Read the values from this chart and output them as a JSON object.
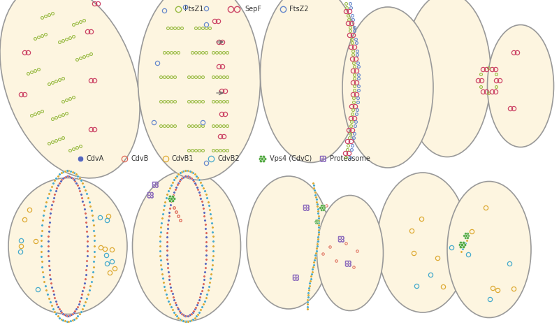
{
  "bg_color": "#ffffff",
  "cell_fill": "#fdf5e0",
  "cell_edge": "#999999",
  "colors": {
    "CdvA": "#5566bb",
    "CdvB": "#dd6655",
    "CdvB1": "#ddaa33",
    "CdvB2": "#44aacc",
    "Vps4": "#55aa44",
    "Proteasome": "#8866bb",
    "FtsZ1": "#99bb44",
    "SepF": "#cc4466",
    "FtsZ2": "#6688cc"
  }
}
